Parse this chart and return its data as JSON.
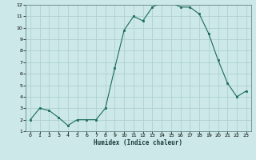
{
  "x": [
    0,
    1,
    2,
    3,
    4,
    5,
    6,
    7,
    8,
    9,
    10,
    11,
    12,
    13,
    14,
    15,
    16,
    17,
    18,
    19,
    20,
    21,
    22,
    23
  ],
  "y": [
    2.0,
    3.0,
    2.8,
    2.2,
    1.5,
    2.0,
    2.0,
    2.0,
    3.0,
    6.5,
    9.8,
    11.0,
    10.6,
    11.8,
    12.2,
    12.2,
    11.8,
    11.8,
    11.2,
    9.5,
    7.2,
    5.2,
    4.0,
    4.5
  ],
  "xlabel": "Humidex (Indice chaleur)",
  "ylim": [
    1,
    12
  ],
  "xlim": [
    -0.5,
    23.5
  ],
  "yticks": [
    1,
    2,
    3,
    4,
    5,
    6,
    7,
    8,
    9,
    10,
    11,
    12
  ],
  "xticks": [
    0,
    1,
    2,
    3,
    4,
    5,
    6,
    7,
    8,
    9,
    10,
    11,
    12,
    13,
    14,
    15,
    16,
    17,
    18,
    19,
    20,
    21,
    22,
    23
  ],
  "line_color": "#1a6b5a",
  "marker_color": "#1a6b5a",
  "bg_color": "#cce8e8",
  "grid_color": "#aacece",
  "title": ""
}
